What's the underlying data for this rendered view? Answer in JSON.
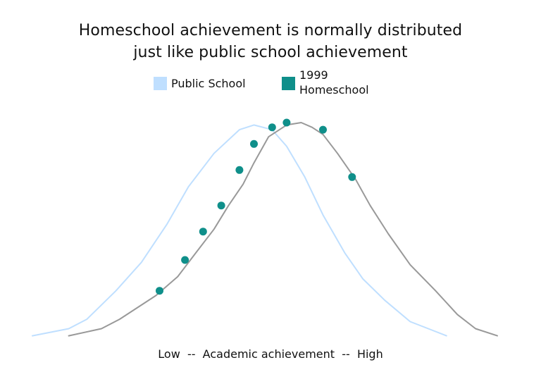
{
  "title": {
    "line1": "Homeschool achievement is normally distributed",
    "line2": "just like public school achievement"
  },
  "legend": {
    "public_label": "Public School",
    "homeschool_label": "1999 Homeschool"
  },
  "colors": {
    "public_school": "#bfdfff",
    "homeschool_line": "#999999",
    "homeschool_marker": "#0f8f8a"
  },
  "chart_data": {
    "type": "line",
    "title": "Homeschool achievement is normally distributed just like public school achievement",
    "xlabel": "Low  --  Academic achievement  --  High",
    "ylabel": "",
    "series": [
      {
        "name": "Public School",
        "marker": false,
        "points": [
          [
            0,
            1
          ],
          [
            10,
            4
          ],
          [
            15,
            8
          ],
          [
            23,
            20
          ],
          [
            30,
            32
          ],
          [
            37,
            48
          ],
          [
            43,
            64
          ],
          [
            50,
            78
          ],
          [
            57,
            88
          ],
          [
            61,
            90
          ],
          [
            66,
            88
          ],
          [
            70,
            81
          ],
          [
            75,
            68
          ],
          [
            80,
            52
          ],
          [
            86,
            36
          ],
          [
            91,
            25
          ],
          [
            97,
            16
          ],
          [
            104,
            7
          ],
          [
            109,
            4
          ],
          [
            114,
            1
          ]
        ]
      },
      {
        "name": "1999 Homeschool",
        "marker": true,
        "points": [
          [
            10,
            1
          ],
          [
            19,
            4
          ],
          [
            24,
            8
          ],
          [
            34,
            18
          ],
          [
            40,
            26
          ],
          [
            45,
            36
          ],
          [
            50,
            46
          ],
          [
            54,
            56
          ],
          [
            58,
            65
          ],
          [
            61,
            74
          ],
          [
            65,
            85
          ],
          [
            70,
            90
          ],
          [
            74,
            91
          ],
          [
            77,
            89
          ],
          [
            80,
            86
          ],
          [
            84,
            78
          ],
          [
            89,
            67
          ],
          [
            93,
            56
          ],
          [
            98,
            44
          ],
          [
            104,
            31
          ],
          [
            111,
            20
          ],
          [
            117,
            10
          ],
          [
            122,
            4
          ],
          [
            128,
            1
          ]
        ],
        "marker_points": [
          [
            35,
            20
          ],
          [
            42,
            33
          ],
          [
            47,
            45
          ],
          [
            52,
            56
          ],
          [
            57,
            71
          ],
          [
            61,
            82
          ],
          [
            66,
            89
          ],
          [
            70,
            91
          ],
          [
            80,
            88
          ],
          [
            88,
            68
          ]
        ]
      }
    ],
    "xlim": [
      0,
      128
    ],
    "ylim": [
      0,
      91
    ],
    "grid": false,
    "legend_position": "top-center"
  }
}
